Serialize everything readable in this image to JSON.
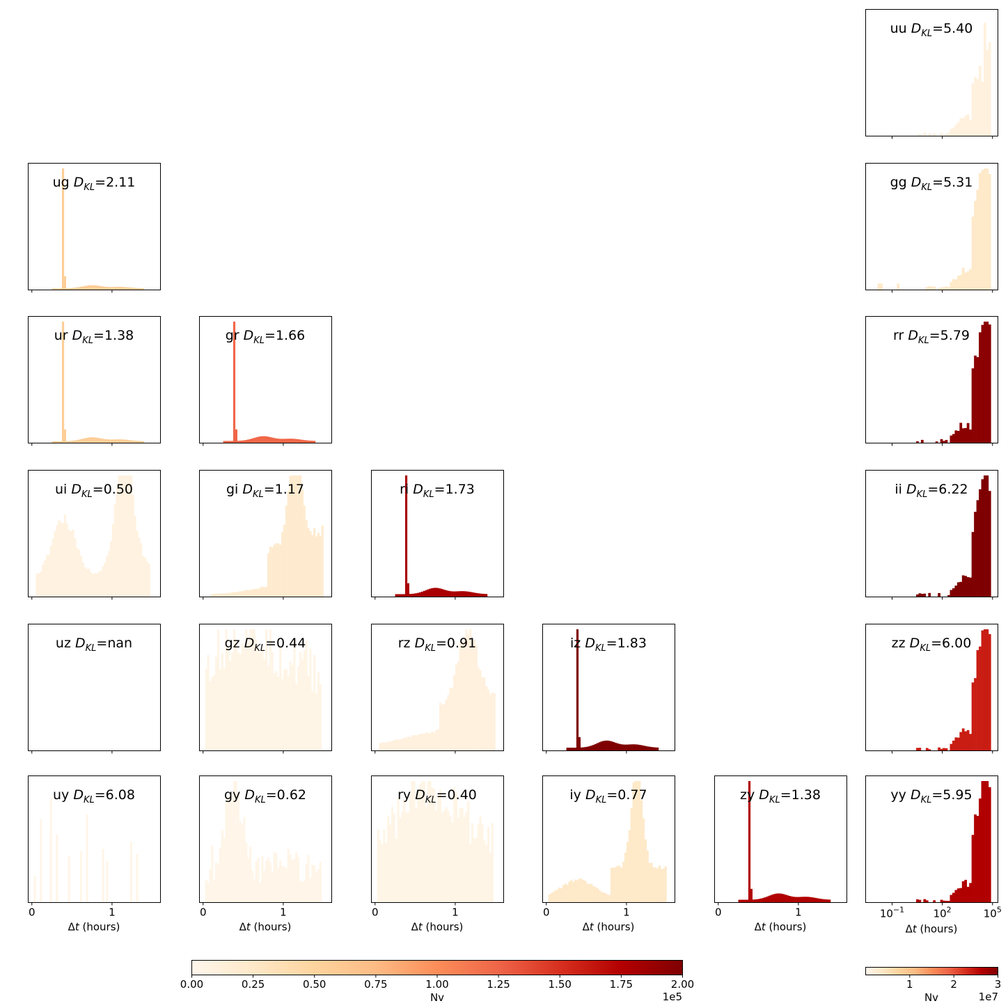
{
  "figure": {
    "xlabel_prefix": "Δ",
    "xlabel_var": "t",
    "xlabel_suffix": " (hours)",
    "dkl_label": "D",
    "dkl_sub": "KL",
    "linear_ticks": [
      "0",
      "1"
    ],
    "log_ticks": [
      {
        "base": "10",
        "exp": "−1"
      },
      {
        "base": "10",
        "exp": "2"
      },
      {
        "base": "10",
        "exp": "5"
      }
    ]
  },
  "colorbars": {
    "linear": {
      "label": "Nv",
      "offset": "1e5",
      "ticks": [
        "0.00",
        "0.25",
        "0.50",
        "0.75",
        "1.00",
        "1.25",
        "1.50",
        "1.75",
        "2.00"
      ],
      "range": [
        0,
        200000
      ],
      "colormap": "OrRd"
    },
    "log_panel": {
      "label": "Nv",
      "offset": "1e7",
      "ticks": [
        "1",
        "2",
        "3"
      ],
      "range": [
        0,
        30000000
      ],
      "colormap": "OrRd"
    }
  },
  "chart_data": {
    "type": "histogram-grid",
    "xlabel": "Δt (hours)",
    "linear_xlim": [
      -0.05,
      1.6
    ],
    "log_xlim_exp": [
      -2.6,
      5.3
    ],
    "panels": [
      {
        "pair": "uu",
        "dkl": "5.40",
        "row": 0,
        "col": 5,
        "scale": "log",
        "nv_fraction": 0.05,
        "shape": "uu"
      },
      {
        "pair": "ug",
        "dkl": "2.11",
        "row": 1,
        "col": 0,
        "scale": "linear",
        "nv_fraction": 0.28,
        "shape": "spike",
        "spike_at": 0.38,
        "bump_height": 0.02
      },
      {
        "pair": "gg",
        "dkl": "5.31",
        "row": 1,
        "col": 5,
        "scale": "log",
        "nv_fraction": 0.12,
        "shape": "gg"
      },
      {
        "pair": "ur",
        "dkl": "1.38",
        "row": 2,
        "col": 0,
        "scale": "linear",
        "nv_fraction": 0.28,
        "shape": "spike",
        "spike_at": 0.38,
        "bump_height": 0.025
      },
      {
        "pair": "gr",
        "dkl": "1.66",
        "row": 2,
        "col": 1,
        "scale": "linear",
        "nv_fraction": 0.62,
        "shape": "spike",
        "spike_at": 0.38,
        "bump_height": 0.03
      },
      {
        "pair": "rr",
        "dkl": "5.79",
        "row": 2,
        "col": 5,
        "scale": "log",
        "nv_fraction": 0.97,
        "shape": "peak"
      },
      {
        "pair": "ui",
        "dkl": "0.50",
        "row": 3,
        "col": 0,
        "scale": "linear",
        "nv_fraction": 0.04,
        "shape": "ui"
      },
      {
        "pair": "gi",
        "dkl": "1.17",
        "row": 3,
        "col": 1,
        "scale": "linear",
        "nv_fraction": 0.1,
        "shape": "gi"
      },
      {
        "pair": "ri",
        "dkl": "1.73",
        "row": 3,
        "col": 2,
        "scale": "linear",
        "nv_fraction": 0.9,
        "shape": "spike",
        "spike_at": 0.38,
        "bump_height": 0.04
      },
      {
        "pair": "ii",
        "dkl": "6.22",
        "row": 3,
        "col": 5,
        "scale": "log",
        "nv_fraction": 1.0,
        "shape": "peak"
      },
      {
        "pair": "uz",
        "dkl": "nan",
        "row": 4,
        "col": 0,
        "scale": "linear",
        "nv_fraction": 0.0,
        "shape": "empty"
      },
      {
        "pair": "gz",
        "dkl": "0.44",
        "row": 4,
        "col": 1,
        "scale": "linear",
        "nv_fraction": 0.02,
        "shape": "gz"
      },
      {
        "pair": "rz",
        "dkl": "0.91",
        "row": 4,
        "col": 2,
        "scale": "linear",
        "nv_fraction": 0.05,
        "shape": "rz"
      },
      {
        "pair": "iz",
        "dkl": "1.83",
        "row": 4,
        "col": 3,
        "scale": "linear",
        "nv_fraction": 1.0,
        "shape": "spike",
        "spike_at": 0.38,
        "bump_height": 0.045
      },
      {
        "pair": "zz",
        "dkl": "6.00",
        "row": 4,
        "col": 5,
        "scale": "log",
        "nv_fraction": 0.8,
        "shape": "peak"
      },
      {
        "pair": "uy",
        "dkl": "6.08",
        "row": 5,
        "col": 0,
        "scale": "linear",
        "nv_fraction": 0.01,
        "shape": "uy"
      },
      {
        "pair": "gy",
        "dkl": "0.62",
        "row": 5,
        "col": 1,
        "scale": "linear",
        "nv_fraction": 0.015,
        "shape": "gy"
      },
      {
        "pair": "ry",
        "dkl": "0.40",
        "row": 5,
        "col": 2,
        "scale": "linear",
        "nv_fraction": 0.02,
        "shape": "ry"
      },
      {
        "pair": "iy",
        "dkl": "0.77",
        "row": 5,
        "col": 3,
        "scale": "linear",
        "nv_fraction": 0.12,
        "shape": "iy"
      },
      {
        "pair": "zy",
        "dkl": "1.38",
        "row": 5,
        "col": 4,
        "scale": "linear",
        "nv_fraction": 0.88,
        "shape": "spike",
        "spike_at": 0.38,
        "bump_height": 0.04
      },
      {
        "pair": "yy",
        "dkl": "5.95",
        "row": 5,
        "col": 5,
        "scale": "log",
        "nv_fraction": 0.88,
        "shape": "yy"
      }
    ]
  }
}
